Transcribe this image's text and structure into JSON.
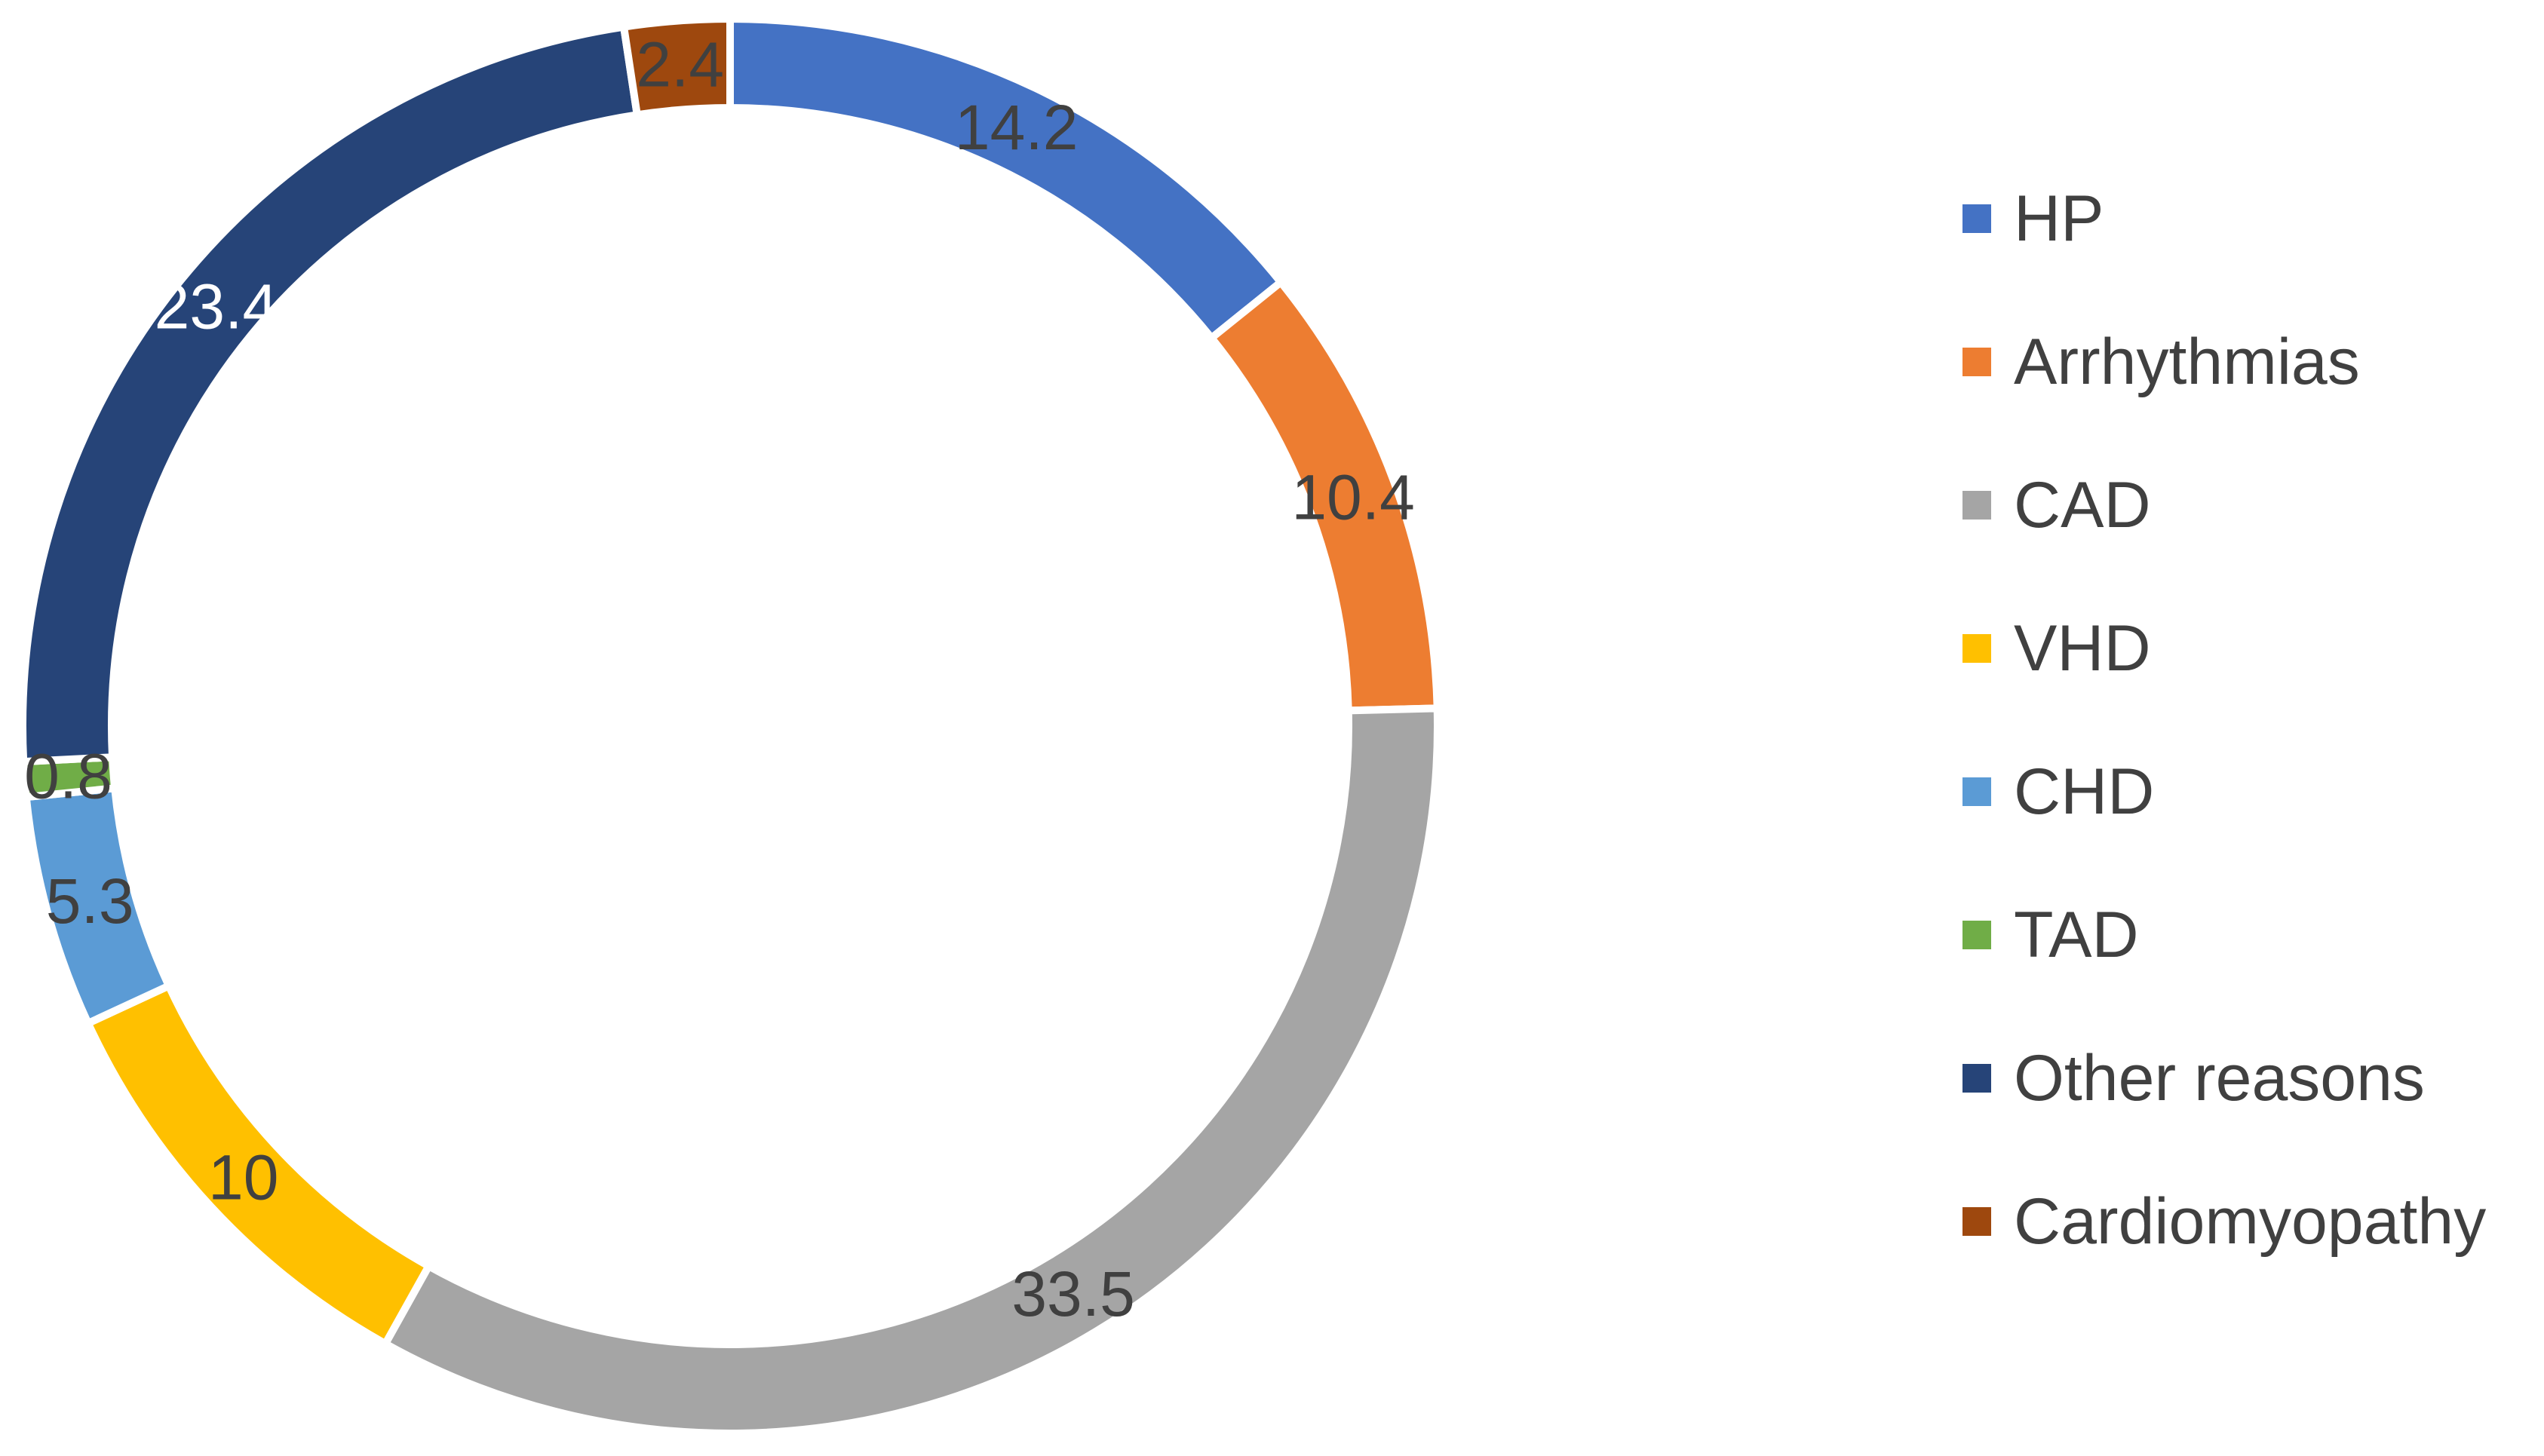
{
  "chart_data": {
    "type": "pie",
    "variant": "donut",
    "title": "",
    "start_angle_deg": 0,
    "direction": "clockwise",
    "legend_position": "right",
    "categories": [
      "HP",
      "Arrhythmias",
      "CAD",
      "VHD",
      "CHD",
      "TAD",
      "Other reasons",
      "Cardiomyopathy"
    ],
    "values": [
      14.2,
      10.4,
      33.5,
      10,
      5.3,
      0.8,
      23.4,
      2.4
    ],
    "data_labels": [
      "14.2",
      "10.4",
      "33.5",
      "10",
      "5.3",
      "0.8",
      "23.4",
      "2.4"
    ],
    "colors": [
      "#4472C4",
      "#ED7D31",
      "#A5A5A5",
      "#FFC000",
      "#5B9BD5",
      "#70AD47",
      "#264478",
      "#9E480E"
    ],
    "label_colors": [
      "#404040",
      "#404040",
      "#404040",
      "#404040",
      "#404040",
      "#404040",
      "#ffffff",
      "#404040"
    ]
  }
}
